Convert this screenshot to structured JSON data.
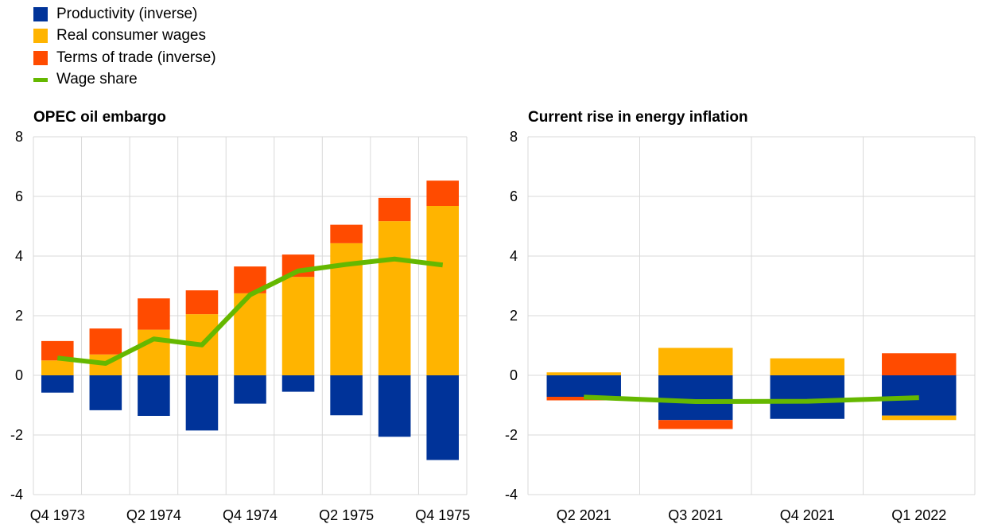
{
  "legend": [
    {
      "label": "Productivity (inverse)",
      "color": "#003399",
      "type": "bar"
    },
    {
      "label": "Real consumer wages",
      "color": "#FFB400",
      "type": "bar"
    },
    {
      "label": "Terms of trade (inverse)",
      "color": "#FF4B00",
      "type": "bar"
    },
    {
      "label": "Wage share",
      "color": "#65B800",
      "type": "line"
    }
  ],
  "chart_data": [
    {
      "type": "bar",
      "stacked": true,
      "title": "OPEC oil embargo",
      "ylim": [
        -4,
        8
      ],
      "yticks": [
        -4,
        -2,
        0,
        2,
        4,
        6,
        8
      ],
      "categories": [
        "Q4 1973",
        "Q1 1974",
        "Q2 1974",
        "Q3 1974",
        "Q4 1974",
        "Q1 1975",
        "Q2 1975",
        "Q3 1975",
        "Q4 1975"
      ],
      "x_tick_labels": [
        "Q4 1973",
        "",
        "Q2 1974",
        "",
        "Q4 1974",
        "",
        "Q2 1975",
        "",
        "Q4 1975"
      ],
      "series": [
        {
          "name": "Productivity (inverse)",
          "values": [
            -0.58,
            -1.17,
            -1.36,
            -1.85,
            -0.95,
            -0.55,
            -1.34,
            -2.06,
            -2.84
          ]
        },
        {
          "name": "Real consumer wages",
          "values": [
            0.5,
            0.7,
            1.53,
            2.05,
            2.75,
            3.3,
            4.43,
            5.17,
            5.68
          ]
        },
        {
          "name": "Terms of trade (inverse)",
          "values": [
            0.65,
            0.87,
            1.05,
            0.8,
            0.9,
            0.75,
            0.62,
            0.78,
            0.85
          ]
        }
      ],
      "line": {
        "name": "Wage share",
        "values": [
          0.58,
          0.4,
          1.22,
          1.02,
          2.7,
          3.5,
          3.72,
          3.9,
          3.7
        ]
      },
      "grid": true
    },
    {
      "type": "bar",
      "stacked": true,
      "title": "Current rise in energy inflation",
      "ylim": [
        -4,
        8
      ],
      "yticks": [
        -4,
        -2,
        0,
        2,
        4,
        6,
        8
      ],
      "categories": [
        "Q2 2021",
        "Q3 2021",
        "Q4 2021",
        "Q1 2022"
      ],
      "x_tick_labels": [
        "Q2 2021",
        "Q3 2021",
        "Q4 2021",
        "Q1 2022"
      ],
      "series": [
        {
          "name": "Productivity (inverse)",
          "values": [
            -0.72,
            -1.5,
            -1.46,
            -1.35
          ]
        },
        {
          "name": "Real consumer wages",
          "values": [
            0.1,
            0.92,
            0.57,
            -0.15
          ]
        },
        {
          "name": "Terms of trade (inverse)",
          "values": [
            -0.12,
            -0.3,
            0.0,
            0.74
          ]
        }
      ],
      "line": {
        "name": "Wage share",
        "values": [
          -0.73,
          -0.88,
          -0.87,
          -0.75
        ]
      },
      "grid": true
    }
  ]
}
